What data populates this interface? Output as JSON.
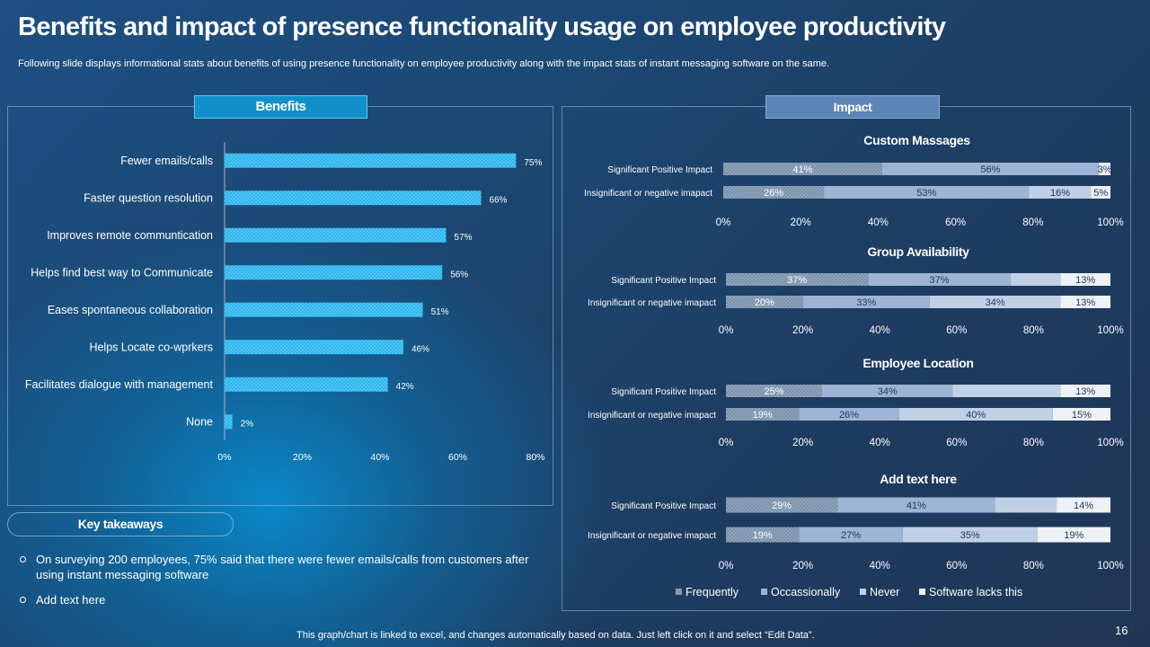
{
  "title": "Benefits and impact of presence functionality usage on employee productivity",
  "subtitle": "Following slide displays informational stats about benefits of using presence functionality on employee productivity along with the impact  stats of instant messaging software on the same.",
  "benefits_tag": "Benefits",
  "impact_tag": "Impact",
  "takeaways_tag": "Key takeaways",
  "bullets": [
    "On surveying 200 employees, 75% said that there were fewer emails/calls from customers after using instant messaging software",
    "Add text here"
  ],
  "footer": "This graph/chart is linked to excel, and changes automatically based on data. Just left click on it and select “Edit Data”.",
  "page_number": "16",
  "colors": {
    "benefit_bar": "#29b6ef",
    "frequently": "#8da3bc",
    "occasionally": "#9db4d4",
    "never": "#c0d0e6",
    "lacks": "#eef2f7"
  },
  "chart_data": [
    {
      "type": "bar",
      "orientation": "horizontal",
      "title": "",
      "categories": [
        "Fewer emails/calls",
        "Faster question resolution",
        "Improves remote communtication",
        "Helps find best way to Communicate",
        "Eases spontaneous collaboration",
        "Helps Locate co-wprkers",
        "Facilitates dialogue with management",
        "None"
      ],
      "values": [
        75,
        66,
        57,
        56,
        51,
        46,
        42,
        2
      ],
      "value_labels": [
        "75%",
        "66%",
        "57%",
        "56%",
        "51%",
        "46%",
        "42%",
        "2%"
      ],
      "xlim": [
        0,
        80
      ],
      "xticks": [
        "0%",
        "20%",
        "40%",
        "60%",
        "80%"
      ]
    },
    {
      "type": "bar",
      "orientation": "horizontal",
      "stacked": true,
      "title": "Custom Massages",
      "categories": [
        "Significant Positive Impact",
        "Insignificant or negative imapact"
      ],
      "series": [
        {
          "name": "Frequently",
          "values": [
            41,
            26
          ],
          "labels": [
            "41%",
            "26%"
          ]
        },
        {
          "name": "Occassionally",
          "values": [
            56,
            53
          ],
          "labels": [
            "56%",
            "53%"
          ]
        },
        {
          "name": "Never",
          "values": [
            0,
            16
          ],
          "labels": [
            "",
            "16%"
          ]
        },
        {
          "name": "Software lacks this",
          "values": [
            3,
            5
          ],
          "labels": [
            "3%",
            "5%"
          ]
        }
      ],
      "xticks": [
        "0%",
        "20%",
        "40%",
        "60%",
        "80%",
        "100%"
      ]
    },
    {
      "type": "bar",
      "orientation": "horizontal",
      "stacked": true,
      "title": "Group Availability",
      "categories": [
        "Significant Positive Impact",
        "Insignificant or negative imapact"
      ],
      "series": [
        {
          "name": "Frequently",
          "values": [
            37,
            20
          ],
          "labels": [
            "37%",
            "20%"
          ]
        },
        {
          "name": "Occassionally",
          "values": [
            37,
            33
          ],
          "labels": [
            "37%",
            "33%"
          ]
        },
        {
          "name": "Never",
          "values": [
            13,
            34
          ],
          "labels": [
            "",
            "34%"
          ]
        },
        {
          "name": "Software lacks this",
          "values": [
            13,
            13
          ],
          "labels": [
            "13%",
            "13%"
          ]
        }
      ],
      "xticks": [
        "0%",
        "20%",
        "40%",
        "60%",
        "80%",
        "100%"
      ]
    },
    {
      "type": "bar",
      "orientation": "horizontal",
      "stacked": true,
      "title": "Employee Location",
      "categories": [
        "Significant Positive Impact",
        "Insignificant or negative imapact"
      ],
      "series": [
        {
          "name": "Frequently",
          "values": [
            25,
            19
          ],
          "labels": [
            "25%",
            "19%"
          ]
        },
        {
          "name": "Occassionally",
          "values": [
            34,
            26
          ],
          "labels": [
            "34%",
            "26%"
          ]
        },
        {
          "name": "Never",
          "values": [
            28,
            40
          ],
          "labels": [
            "",
            "40%"
          ]
        },
        {
          "name": "Software lacks this",
          "values": [
            13,
            15
          ],
          "labels": [
            "13%",
            "15%"
          ]
        }
      ],
      "xticks": [
        "0%",
        "20%",
        "40%",
        "60%",
        "80%",
        "100%"
      ]
    },
    {
      "type": "bar",
      "orientation": "horizontal",
      "stacked": true,
      "title": "Add text here",
      "categories": [
        "Significant Positive Impact",
        "Insignificant or negative imapact"
      ],
      "series": [
        {
          "name": "Frequently",
          "values": [
            29,
            19
          ],
          "labels": [
            "29%",
            "19%"
          ]
        },
        {
          "name": "Occassionally",
          "values": [
            41,
            27
          ],
          "labels": [
            "41%",
            "27%"
          ]
        },
        {
          "name": "Never",
          "values": [
            16,
            35
          ],
          "labels": [
            "",
            "35%"
          ]
        },
        {
          "name": "Software lacks this",
          "values": [
            14,
            19
          ],
          "labels": [
            "14%",
            "19%"
          ]
        }
      ],
      "xticks": [
        "0%",
        "20%",
        "40%",
        "60%",
        "80%",
        "100%"
      ]
    }
  ],
  "legend": [
    "Frequently",
    "Occassionally",
    "Never",
    "Software lacks this"
  ]
}
